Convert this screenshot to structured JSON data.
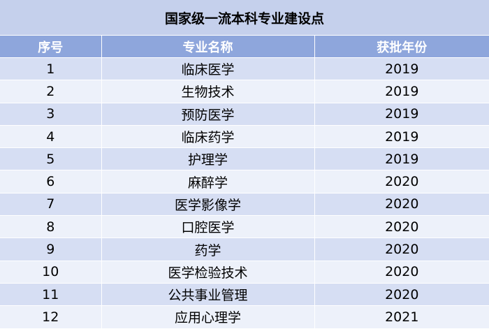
{
  "title": "国家级一流本科专业建设点",
  "headers": [
    "序号",
    "专业名称",
    "获批年份"
  ],
  "rows": [
    [
      "1",
      "临床医学",
      "2019"
    ],
    [
      "2",
      "生物技术",
      "2019"
    ],
    [
      "3",
      "预防医学",
      "2019"
    ],
    [
      "4",
      "临床药学",
      "2019"
    ],
    [
      "5",
      "护理学",
      "2019"
    ],
    [
      "6",
      "麻醉学",
      "2020"
    ],
    [
      "7",
      "医学影像学",
      "2020"
    ],
    [
      "8",
      "口腔医学",
      "2020"
    ],
    [
      "9",
      "药学",
      "2020"
    ],
    [
      "10",
      "医学检验技术",
      "2020"
    ],
    [
      "11",
      "公共事业管理",
      "2020"
    ],
    [
      "12",
      "应用心理学",
      "2021"
    ]
  ],
  "colors": {
    "title_bg": "#c5d0ec",
    "header_bg": "#8ea6dc",
    "row_odd_bg": "#d6def3",
    "row_even_bg": "#edf1fa"
  }
}
